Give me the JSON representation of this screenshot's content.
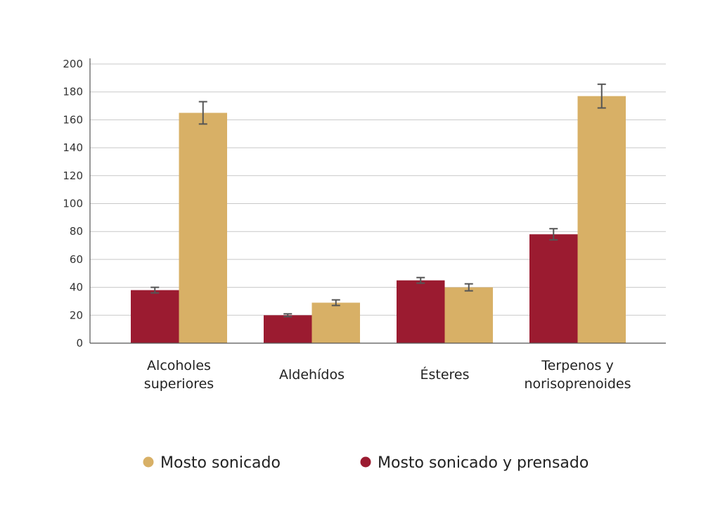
{
  "chart_data": {
    "type": "bar",
    "title": "",
    "xlabel": "",
    "ylabel": "",
    "categories": [
      [
        "Alcoholes",
        "superiores"
      ],
      [
        "Aldehídos"
      ],
      [
        "Ésteres"
      ],
      [
        "Terpenos y",
        "norisoprenoides"
      ]
    ],
    "ylim": [
      0,
      200
    ],
    "yticks": [
      0,
      20,
      40,
      60,
      80,
      100,
      120,
      140,
      160,
      180,
      200
    ],
    "grid": true,
    "legend_position": "bottom",
    "series": [
      {
        "name": "Mosto sonicado y prensado",
        "color": "#9b1b30",
        "values": [
          38,
          20,
          45,
          78
        ],
        "errors": [
          2,
          1,
          2,
          4
        ]
      },
      {
        "name": "Mosto sonicado",
        "color": "#d8b066",
        "values": [
          165,
          29,
          40,
          177
        ],
        "errors": [
          8,
          2,
          2.5,
          8.5
        ]
      }
    ],
    "legend": [
      {
        "name": "Mosto sonicado",
        "color": "#d8b066"
      },
      {
        "name": "Mosto sonicado y prensado",
        "color": "#9b1b30"
      }
    ]
  }
}
